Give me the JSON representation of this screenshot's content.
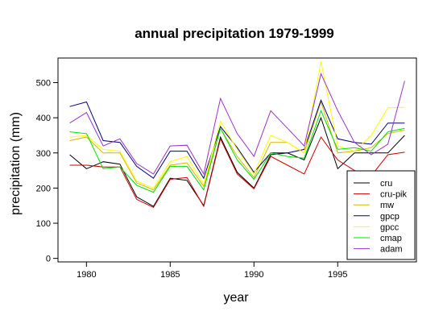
{
  "chart_data": {
    "type": "line",
    "title": "annual precipitation 1979-1999",
    "xlabel": "year",
    "ylabel": "precipitation (mm)",
    "xlim": [
      1978.3,
      1999.7
    ],
    "ylim": [
      -10,
      570
    ],
    "xticks": [
      1980,
      1985,
      1990,
      1995
    ],
    "yticks": [
      0,
      100,
      200,
      300,
      400,
      500
    ],
    "legend_position": "bottom-right",
    "grid": false,
    "x": [
      1979,
      1980,
      1981,
      1982,
      1983,
      1984,
      1985,
      1986,
      1987,
      1988,
      1989,
      1990,
      1991,
      1992,
      1993,
      1994,
      1995,
      1996,
      1997,
      1998,
      1999
    ],
    "series": [
      {
        "name": "cru",
        "color": "#000000",
        "values": [
          295,
          255,
          275,
          268,
          175,
          148,
          228,
          222,
          150,
          345,
          245,
          200,
          295,
          300,
          280,
          400,
          255,
          300,
          300,
          300,
          350
        ]
      },
      {
        "name": "cru-pik",
        "color": "#cc0000",
        "values": [
          265,
          265,
          260,
          260,
          168,
          145,
          225,
          230,
          148,
          340,
          240,
          198,
          290,
          265,
          240,
          345,
          280,
          250,
          235,
          295,
          302
        ]
      },
      {
        "name": "mw",
        "color": "#d4b800",
        "values": [
          335,
          345,
          300,
          300,
          215,
          195,
          265,
          272,
          205,
          370,
          290,
          230,
          330,
          330,
          300,
          445,
          300,
          305,
          315,
          355,
          365
        ]
      },
      {
        "name": "gpcp",
        "color": "#00007a",
        "values": [
          432,
          445,
          335,
          330,
          262,
          228,
          305,
          305,
          228,
          375,
          315,
          245,
          300,
          300,
          310,
          450,
          340,
          330,
          325,
          385,
          385
        ]
      },
      {
        "name": "gpcc",
        "color": "#ffff00",
        "values": [
          345,
          350,
          310,
          305,
          220,
          200,
          275,
          290,
          210,
          390,
          310,
          240,
          350,
          330,
          300,
          560,
          320,
          305,
          350,
          428,
          430
        ]
      },
      {
        "name": "cmap",
        "color": "#00e000",
        "values": [
          360,
          355,
          255,
          260,
          208,
          188,
          262,
          262,
          195,
          370,
          280,
          225,
          300,
          290,
          285,
          420,
          310,
          315,
          305,
          360,
          370
        ]
      },
      {
        "name": "adam",
        "color": "#9933cc",
        "values": [
          385,
          415,
          320,
          340,
          270,
          240,
          320,
          322,
          240,
          455,
          355,
          290,
          420,
          370,
          320,
          525,
          420,
          330,
          295,
          325,
          505
        ]
      }
    ]
  }
}
